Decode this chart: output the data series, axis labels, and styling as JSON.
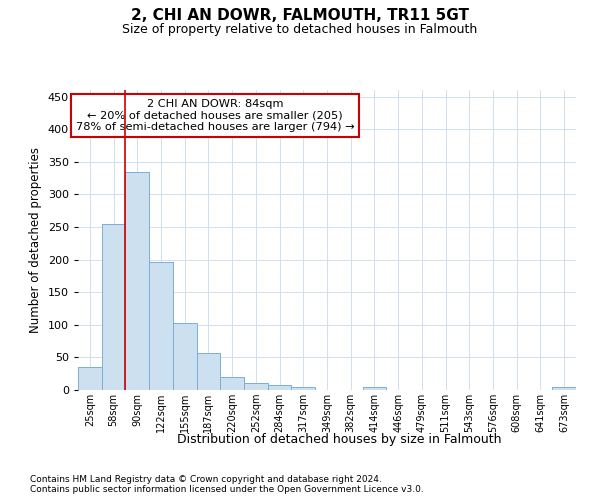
{
  "title": "2, CHI AN DOWR, FALMOUTH, TR11 5GT",
  "subtitle": "Size of property relative to detached houses in Falmouth",
  "xlabel": "Distribution of detached houses by size in Falmouth",
  "ylabel": "Number of detached properties",
  "categories": [
    "25sqm",
    "58sqm",
    "90sqm",
    "122sqm",
    "155sqm",
    "187sqm",
    "220sqm",
    "252sqm",
    "284sqm",
    "317sqm",
    "349sqm",
    "382sqm",
    "414sqm",
    "446sqm",
    "479sqm",
    "511sqm",
    "543sqm",
    "576sqm",
    "608sqm",
    "641sqm",
    "673sqm"
  ],
  "values": [
    35,
    255,
    335,
    196,
    103,
    57,
    20,
    11,
    7,
    4,
    0,
    0,
    4,
    0,
    0,
    0,
    0,
    0,
    0,
    0,
    4
  ],
  "bar_color": "#cce0f0",
  "bar_edge_color": "#7aafd4",
  "grid_color": "#d0e0f0",
  "annotation_text": "2 CHI AN DOWR: 84sqm\n← 20% of detached houses are smaller (205)\n78% of semi-detached houses are larger (794) →",
  "annotation_box_color": "#cc0000",
  "red_line_x": 2,
  "ylim": [
    0,
    460
  ],
  "yticks": [
    0,
    50,
    100,
    150,
    200,
    250,
    300,
    350,
    400,
    450
  ],
  "footer1": "Contains HM Land Registry data © Crown copyright and database right 2024.",
  "footer2": "Contains public sector information licensed under the Open Government Licence v3.0."
}
